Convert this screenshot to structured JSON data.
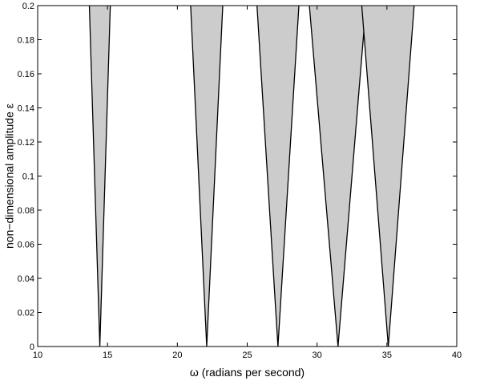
{
  "chart_data": {
    "type": "area",
    "xlabel": "ω (radians per second)",
    "ylabel": "non−dimensional amplitude ε",
    "xlim": [
      10,
      40
    ],
    "ylim": [
      0,
      0.2
    ],
    "x_ticks": [
      10,
      15,
      20,
      25,
      30,
      35,
      40
    ],
    "y_ticks": [
      0,
      0.02,
      0.04,
      0.06,
      0.08,
      0.1,
      0.12,
      0.14,
      0.16,
      0.18,
      0.2
    ],
    "x_tick_labels": [
      "10",
      "15",
      "20",
      "25",
      "30",
      "35",
      "40"
    ],
    "y_tick_labels": [
      "0",
      "0.02",
      "0.04",
      "0.06",
      "0.08",
      "0.1",
      "0.12",
      "0.14",
      "0.16",
      "0.18",
      "0.2"
    ],
    "grid": false,
    "fill_color": "#cccccc",
    "edge_color": "#000000",
    "regions": [
      {
        "tip_x": 14.45,
        "left_x_at_ymax": 13.7,
        "right_x_at_ymax": 15.2
      },
      {
        "tip_x": 22.1,
        "left_x_at_ymax": 20.95,
        "right_x_at_ymax": 23.25
      },
      {
        "tip_x": 27.2,
        "left_x_at_ymax": 25.7,
        "right_x_at_ymax": 28.7
      },
      {
        "tip_x": 31.5,
        "left_x_at_ymax": 29.45,
        "right_x_at_ymax": 33.5
      },
      {
        "tip_x": 35.1,
        "left_x_at_ymax": 33.2,
        "right_x_at_ymax": 36.95
      }
    ]
  }
}
